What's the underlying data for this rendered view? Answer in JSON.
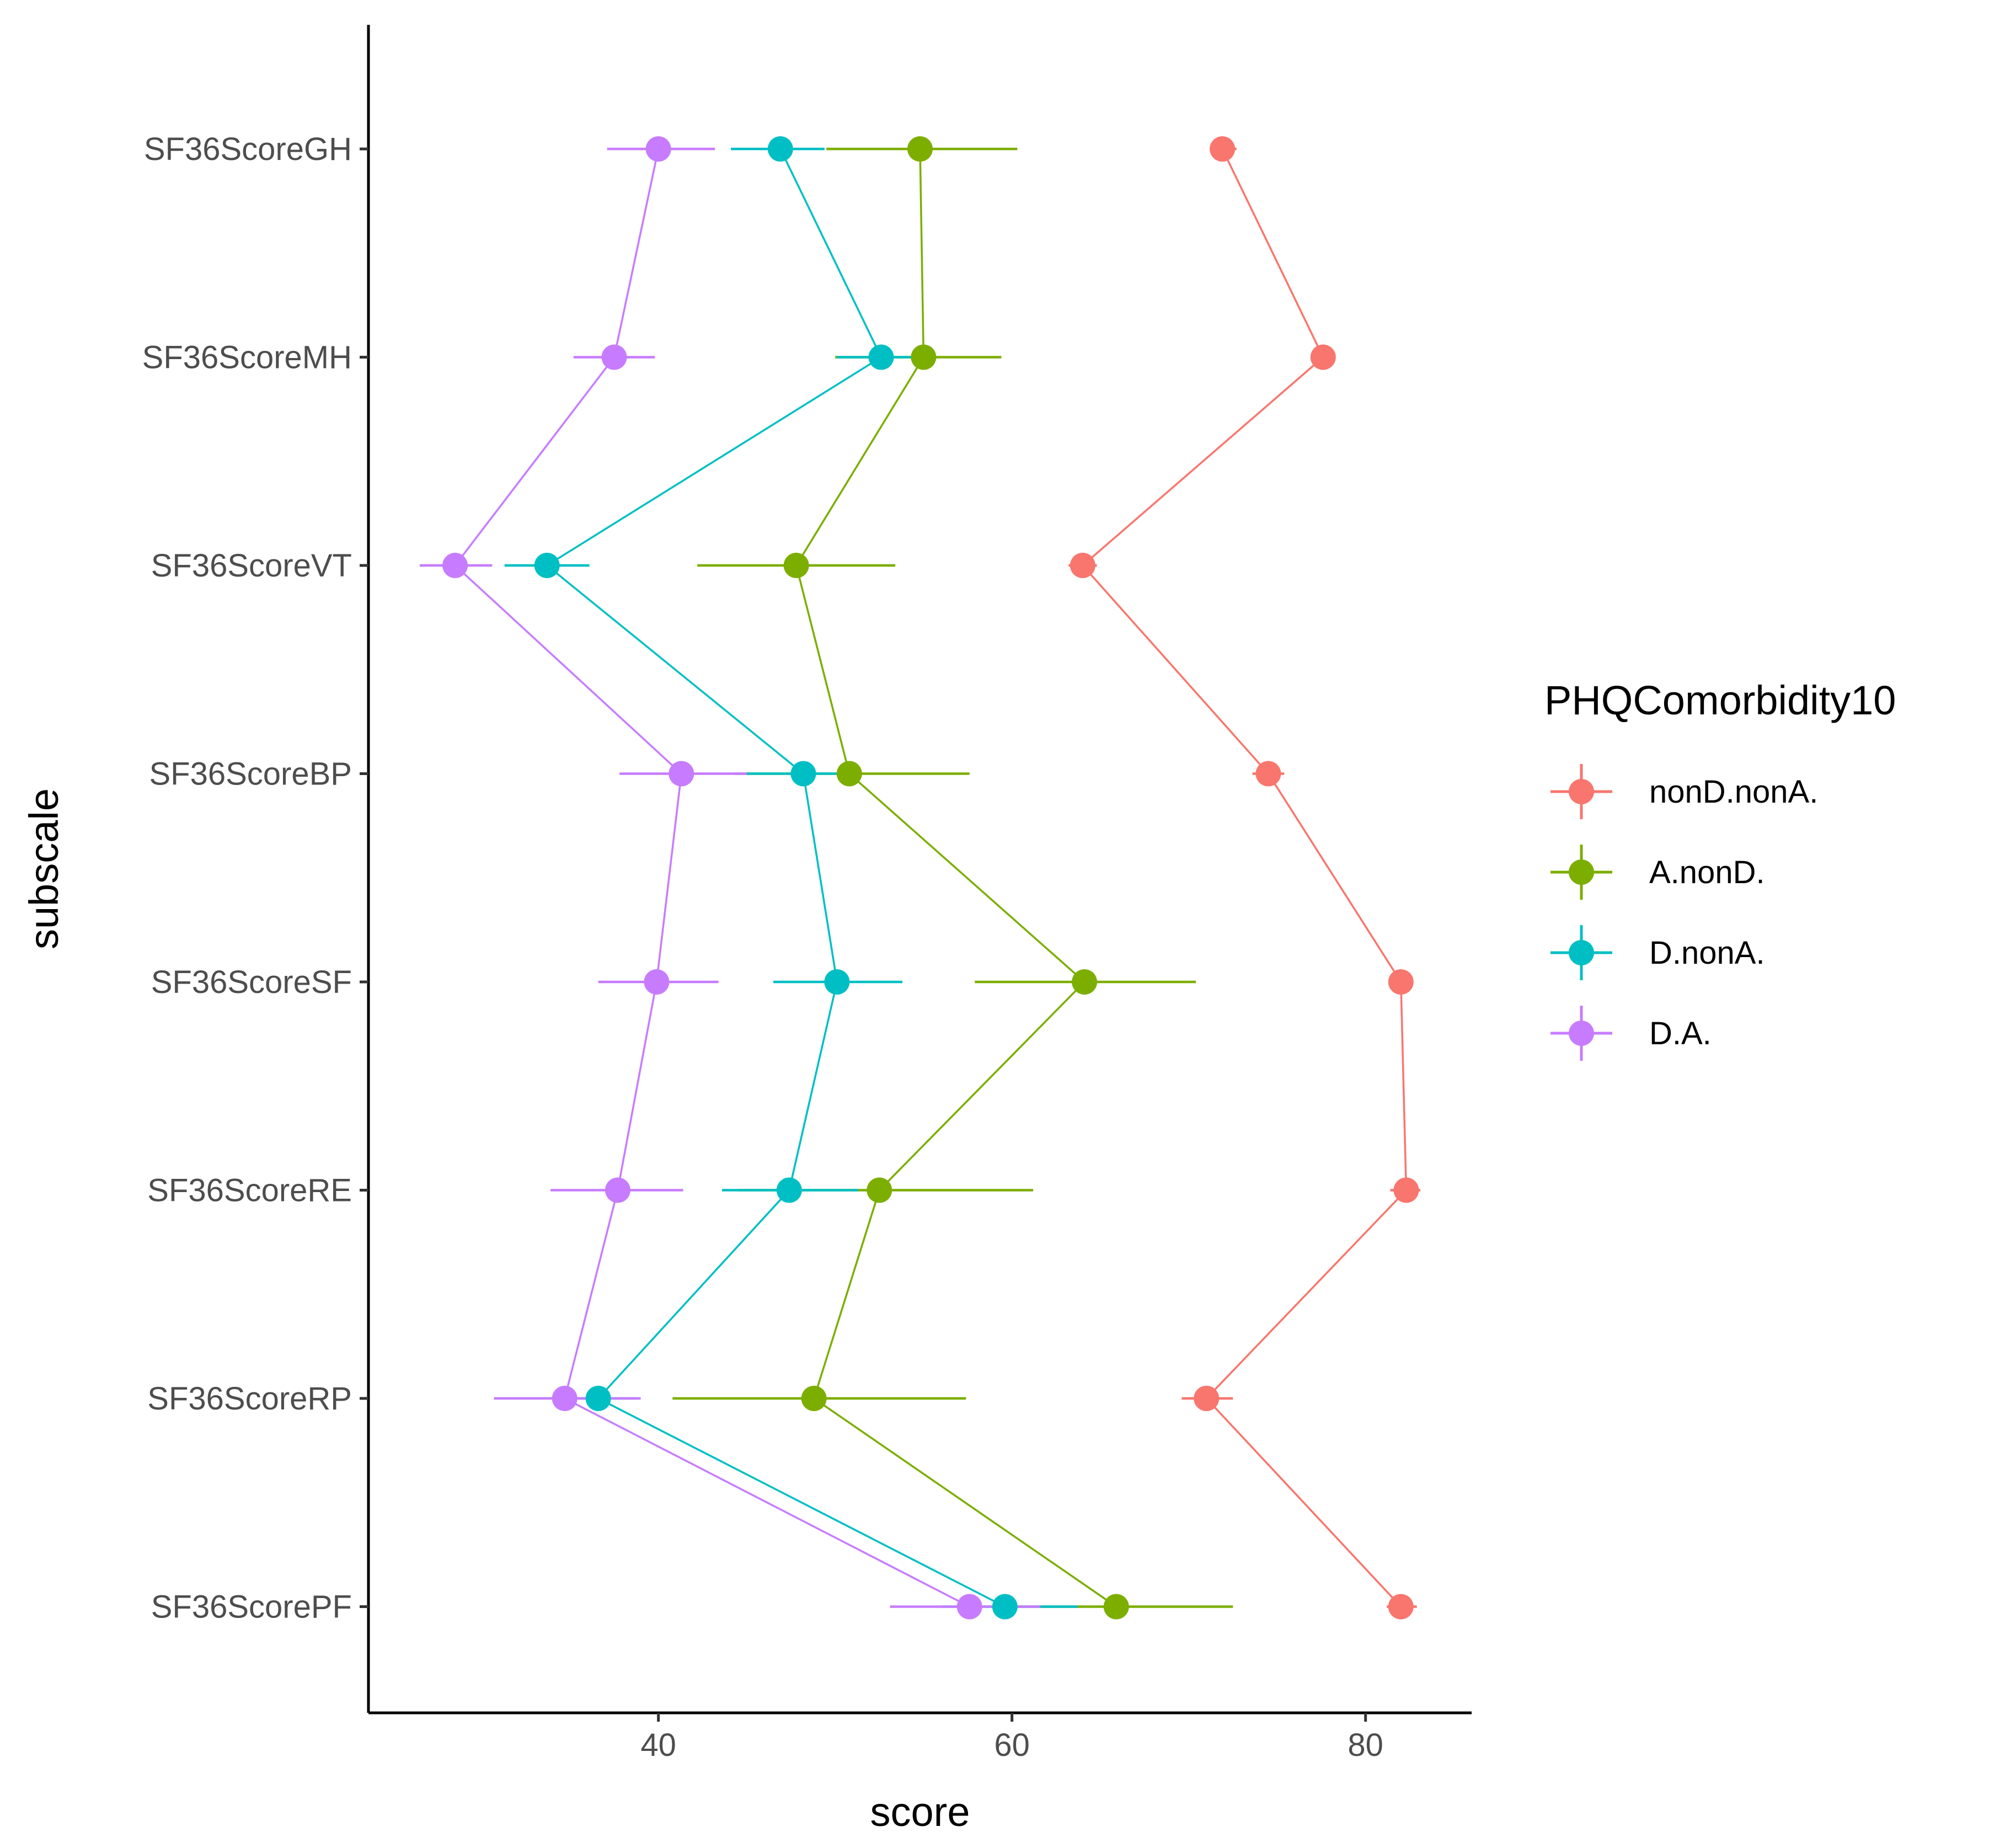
{
  "chart_data": {
    "type": "line",
    "title": "",
    "xlabel": "score",
    "ylabel": "subscale",
    "xlim": [
      23.6,
      86.0
    ],
    "xticks": [
      40,
      60,
      80
    ],
    "xtick_labels": [
      "40",
      "60",
      "80"
    ],
    "categories": [
      "SF36ScoreGH",
      "SF36ScoreMH",
      "SF36ScoreVT",
      "SF36ScoreBP",
      "SF36ScoreSF",
      "SF36ScoreRE",
      "SF36ScoreRP",
      "SF36ScorePF"
    ],
    "legend": {
      "title": "PHQComorbidity10",
      "position": "right"
    },
    "grid": false,
    "series": [
      {
        "name": "nonD.nonA.",
        "color": "#F8766D",
        "values": [
          71.9,
          77.6,
          64.0,
          74.5,
          82.0,
          82.3,
          71.0,
          82.0
        ],
        "err_low": [
          71.2,
          77.0,
          63.2,
          73.6,
          81.3,
          81.4,
          69.6,
          81.2
        ],
        "err_high": [
          72.7,
          78.3,
          64.8,
          75.4,
          82.7,
          83.1,
          72.5,
          82.9
        ]
      },
      {
        "name": "A.nonD.",
        "color": "#7CAE00",
        "values": [
          54.8,
          55.0,
          47.8,
          50.8,
          64.1,
          52.5,
          48.8,
          65.9
        ],
        "err_low": [
          49.5,
          50.0,
          42.2,
          44.3,
          57.9,
          44.5,
          40.8,
          59.9
        ],
        "err_high": [
          60.3,
          59.4,
          53.4,
          57.6,
          70.4,
          61.2,
          57.4,
          72.5
        ]
      },
      {
        "name": "D.nonA.",
        "color": "#00BFC4",
        "values": [
          46.9,
          52.6,
          33.7,
          48.2,
          50.1,
          47.4,
          36.6,
          59.6
        ],
        "err_low": [
          44.1,
          50.1,
          31.3,
          45.0,
          46.5,
          43.6,
          34.1,
          56.0
        ],
        "err_high": [
          49.4,
          54.7,
          36.1,
          50.5,
          53.8,
          51.3,
          38.8,
          63.7
        ]
      },
      {
        "name": "D.A.",
        "color": "#C77CFF",
        "values": [
          40.0,
          37.5,
          28.5,
          41.3,
          39.9,
          37.7,
          34.7,
          57.6
        ],
        "err_low": [
          37.1,
          35.2,
          26.5,
          37.8,
          36.6,
          33.9,
          30.7,
          53.1
        ],
        "err_high": [
          43.2,
          39.8,
          30.6,
          45.0,
          43.4,
          41.4,
          39.0,
          61.6
        ]
      }
    ]
  }
}
